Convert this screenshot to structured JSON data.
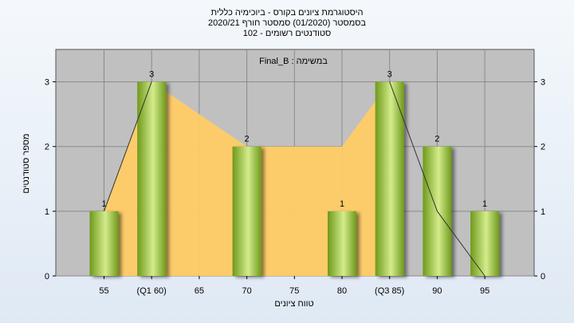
{
  "titles": {
    "line1": "היסטוגרמת ציונים בקורס - ביוכימיה כללית",
    "line2": "בסמסטר  (01/2020)  סמסטר חורף  2020/21",
    "line3": "סטודנטים רשומים - 102"
  },
  "chart_data": {
    "type": "bar",
    "caption": "Final_B : במשימה",
    "xlabel": "טווח ציונים",
    "ylabel": "מספר סטודנטים",
    "categories": [
      "55",
      "(Q1 60)",
      "65",
      "70",
      "75",
      "80",
      "(Q3 85)",
      "90",
      "95"
    ],
    "values": [
      1,
      3,
      null,
      2,
      null,
      1,
      3,
      2,
      1
    ],
    "value_labels": [
      "1",
      "3",
      "",
      "2",
      "",
      "1",
      "3",
      "2",
      "1"
    ],
    "yticks": [
      0,
      1,
      2,
      3
    ],
    "ylim": [
      0,
      3.5
    ],
    "grid": true,
    "area_overlay": {
      "x": [
        "55",
        "(Q1 60)",
        "65",
        "70",
        "75",
        "80",
        "(Q3 85)"
      ],
      "y": [
        1,
        3,
        2.5,
        2,
        2,
        2,
        3
      ]
    },
    "trend_line": {
      "x": [
        "(Q1 60)",
        "55"
      ],
      "y": [
        3,
        1
      ],
      "x2": [
        "(Q3 85)",
        "90",
        "95"
      ],
      "y2": [
        3,
        1,
        0
      ]
    },
    "colors": {
      "plot_bg": "#c0c0c0",
      "area": "#ffcc66",
      "bar_dark": "#6e9a1a",
      "bar_light": "#d4ec8c"
    }
  }
}
